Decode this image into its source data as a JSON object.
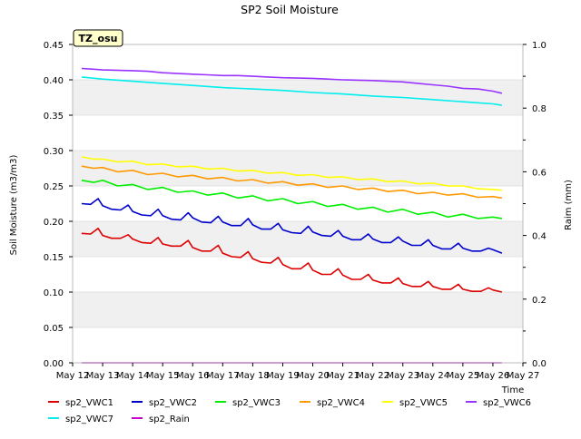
{
  "chart_data": {
    "type": "line",
    "title": "SP2 Soil Moisture",
    "ylabel": "Soil Moisture (m3/m3)",
    "y2label": "Raim (mm)",
    "xlabel": "Time",
    "station_tag": "TZ_osu",
    "ylim": [
      0.0,
      0.45
    ],
    "y2lim": [
      0.0,
      1.0
    ],
    "xlim": [
      12.0,
      27.0
    ],
    "yticks": [
      "0.00",
      "0.05",
      "0.10",
      "0.15",
      "0.20",
      "0.25",
      "0.30",
      "0.35",
      "0.40",
      "0.45"
    ],
    "y2ticks": [
      "0.0",
      "0.2",
      "0.4",
      "0.6",
      "0.8",
      "1.0"
    ],
    "xticks": [
      {
        "x": 12,
        "label": "May 12"
      },
      {
        "x": 13,
        "label": "May 13"
      },
      {
        "x": 14,
        "label": "May 14"
      },
      {
        "x": 15,
        "label": "May 15"
      },
      {
        "x": 16,
        "label": "May 16"
      },
      {
        "x": 17,
        "label": "May 17"
      },
      {
        "x": 18,
        "label": "May 18"
      },
      {
        "x": 19,
        "label": "May 19"
      },
      {
        "x": 20,
        "label": "May 20"
      },
      {
        "x": 21,
        "label": "May 21"
      },
      {
        "x": 22,
        "label": "May 22"
      },
      {
        "x": 23,
        "label": "May 23"
      },
      {
        "x": 24,
        "label": "May 24"
      },
      {
        "x": 25,
        "label": "May 25"
      },
      {
        "x": 26,
        "label": "May 26"
      },
      {
        "x": 27,
        "label": "May 27"
      }
    ],
    "grid": "horizontal bands",
    "legend_position": "bottom",
    "series": [
      {
        "name": "sp2_VWC1",
        "color": "#dd0000",
        "axis": "left",
        "x": [
          12.3,
          12.6,
          12.85,
          13.0,
          13.3,
          13.6,
          13.85,
          14.0,
          14.3,
          14.6,
          14.85,
          15.0,
          15.3,
          15.6,
          15.85,
          16.0,
          16.3,
          16.6,
          16.85,
          17.0,
          17.3,
          17.6,
          17.85,
          18.0,
          18.3,
          18.6,
          18.85,
          19.0,
          19.3,
          19.6,
          19.85,
          20.0,
          20.3,
          20.6,
          20.85,
          21.0,
          21.3,
          21.6,
          21.85,
          22.0,
          22.3,
          22.6,
          22.85,
          23.0,
          23.3,
          23.6,
          23.85,
          24.0,
          24.3,
          24.6,
          24.85,
          25.0,
          25.3,
          25.6,
          25.85,
          26.0,
          26.3
        ],
        "y": [
          0.183,
          0.182,
          0.19,
          0.18,
          0.176,
          0.176,
          0.181,
          0.175,
          0.17,
          0.169,
          0.177,
          0.168,
          0.165,
          0.165,
          0.173,
          0.163,
          0.158,
          0.158,
          0.166,
          0.155,
          0.15,
          0.149,
          0.157,
          0.147,
          0.142,
          0.141,
          0.149,
          0.139,
          0.133,
          0.133,
          0.141,
          0.131,
          0.125,
          0.125,
          0.133,
          0.124,
          0.118,
          0.118,
          0.125,
          0.117,
          0.113,
          0.113,
          0.12,
          0.112,
          0.108,
          0.108,
          0.115,
          0.108,
          0.104,
          0.104,
          0.111,
          0.104,
          0.101,
          0.101,
          0.106,
          0.103,
          0.1
        ]
      },
      {
        "name": "sp2_VWC2",
        "color": "#0000cc",
        "axis": "left",
        "x": [
          12.3,
          12.6,
          12.85,
          13.0,
          13.3,
          13.6,
          13.85,
          14.0,
          14.3,
          14.6,
          14.85,
          15.0,
          15.3,
          15.6,
          15.85,
          16.0,
          16.3,
          16.6,
          16.85,
          17.0,
          17.3,
          17.6,
          17.85,
          18.0,
          18.3,
          18.6,
          18.85,
          19.0,
          19.3,
          19.6,
          19.85,
          20.0,
          20.3,
          20.6,
          20.85,
          21.0,
          21.3,
          21.6,
          21.85,
          22.0,
          22.3,
          22.6,
          22.85,
          23.0,
          23.3,
          23.6,
          23.85,
          24.0,
          24.3,
          24.6,
          24.85,
          25.0,
          25.3,
          25.6,
          25.85,
          26.0,
          26.3
        ],
        "y": [
          0.225,
          0.224,
          0.232,
          0.222,
          0.217,
          0.216,
          0.223,
          0.214,
          0.209,
          0.208,
          0.217,
          0.208,
          0.203,
          0.202,
          0.212,
          0.205,
          0.199,
          0.198,
          0.207,
          0.199,
          0.194,
          0.194,
          0.204,
          0.195,
          0.189,
          0.189,
          0.197,
          0.188,
          0.184,
          0.183,
          0.193,
          0.185,
          0.18,
          0.179,
          0.187,
          0.179,
          0.174,
          0.174,
          0.182,
          0.175,
          0.17,
          0.17,
          0.178,
          0.172,
          0.166,
          0.166,
          0.174,
          0.166,
          0.161,
          0.161,
          0.169,
          0.162,
          0.158,
          0.158,
          0.162,
          0.16,
          0.155
        ]
      },
      {
        "name": "sp2_VWC3",
        "color": "#00ee00",
        "axis": "left",
        "x": [
          12.3,
          12.7,
          13.0,
          13.5,
          14.0,
          14.5,
          15.0,
          15.5,
          16.0,
          16.5,
          17.0,
          17.5,
          18.0,
          18.5,
          19.0,
          19.5,
          20.0,
          20.5,
          21.0,
          21.5,
          22.0,
          22.5,
          23.0,
          23.5,
          24.0,
          24.5,
          25.0,
          25.5,
          26.0,
          26.3
        ],
        "y": [
          0.258,
          0.255,
          0.258,
          0.25,
          0.252,
          0.245,
          0.248,
          0.241,
          0.243,
          0.237,
          0.24,
          0.233,
          0.236,
          0.229,
          0.232,
          0.225,
          0.228,
          0.221,
          0.224,
          0.217,
          0.22,
          0.213,
          0.217,
          0.21,
          0.213,
          0.206,
          0.21,
          0.204,
          0.206,
          0.204
        ]
      },
      {
        "name": "sp2_VWC4",
        "color": "#ff9900",
        "axis": "left",
        "x": [
          12.3,
          12.7,
          13.0,
          13.5,
          14.0,
          14.5,
          15.0,
          15.5,
          16.0,
          16.5,
          17.0,
          17.5,
          18.0,
          18.5,
          19.0,
          19.5,
          20.0,
          20.5,
          21.0,
          21.5,
          22.0,
          22.5,
          23.0,
          23.5,
          24.0,
          24.5,
          25.0,
          25.5,
          26.0,
          26.3
        ],
        "y": [
          0.278,
          0.275,
          0.276,
          0.27,
          0.272,
          0.266,
          0.268,
          0.263,
          0.265,
          0.26,
          0.262,
          0.257,
          0.259,
          0.254,
          0.256,
          0.251,
          0.253,
          0.248,
          0.25,
          0.245,
          0.247,
          0.242,
          0.244,
          0.239,
          0.241,
          0.237,
          0.239,
          0.234,
          0.235,
          0.233
        ]
      },
      {
        "name": "sp2_VWC5",
        "color": "#ffff00",
        "axis": "left",
        "x": [
          12.3,
          12.7,
          13.0,
          13.5,
          14.0,
          14.5,
          15.0,
          15.5,
          16.0,
          16.5,
          17.0,
          17.5,
          18.0,
          18.5,
          19.0,
          19.5,
          20.0,
          20.5,
          21.0,
          21.5,
          22.0,
          22.5,
          23.0,
          23.5,
          24.0,
          24.5,
          25.0,
          25.5,
          26.0,
          26.3
        ],
        "y": [
          0.291,
          0.288,
          0.288,
          0.284,
          0.285,
          0.28,
          0.281,
          0.277,
          0.278,
          0.274,
          0.275,
          0.271,
          0.272,
          0.268,
          0.269,
          0.265,
          0.266,
          0.262,
          0.263,
          0.259,
          0.26,
          0.256,
          0.257,
          0.253,
          0.254,
          0.25,
          0.25,
          0.246,
          0.245,
          0.244
        ]
      },
      {
        "name": "sp2_VWC6",
        "color": "#9933ff",
        "axis": "left",
        "x": [
          12.3,
          12.7,
          13.0,
          14.0,
          14.5,
          15.0,
          16.0,
          16.5,
          17.0,
          17.5,
          18.0,
          18.5,
          19.0,
          20.0,
          20.5,
          21.0,
          22.0,
          22.5,
          23.0,
          23.5,
          24.0,
          24.5,
          25.0,
          25.5,
          26.0,
          26.3
        ],
        "y": [
          0.416,
          0.415,
          0.414,
          0.413,
          0.412,
          0.41,
          0.408,
          0.407,
          0.406,
          0.406,
          0.405,
          0.404,
          0.403,
          0.402,
          0.401,
          0.4,
          0.399,
          0.398,
          0.397,
          0.395,
          0.393,
          0.391,
          0.388,
          0.387,
          0.384,
          0.381
        ]
      },
      {
        "name": "sp2_VWC7",
        "color": "#00eeee",
        "axis": "left",
        "x": [
          12.3,
          13.0,
          14.0,
          15.0,
          16.0,
          17.0,
          18.0,
          19.0,
          20.0,
          21.0,
          22.0,
          23.0,
          24.0,
          25.0,
          26.0,
          26.3
        ],
        "y": [
          0.404,
          0.401,
          0.398,
          0.395,
          0.392,
          0.389,
          0.387,
          0.385,
          0.382,
          0.38,
          0.377,
          0.375,
          0.372,
          0.369,
          0.366,
          0.364
        ]
      },
      {
        "name": "sp2_Rain",
        "color": "#cc00cc",
        "axis": "right",
        "x": [
          12.3,
          26.3
        ],
        "y": [
          0.0,
          0.0
        ]
      }
    ]
  }
}
